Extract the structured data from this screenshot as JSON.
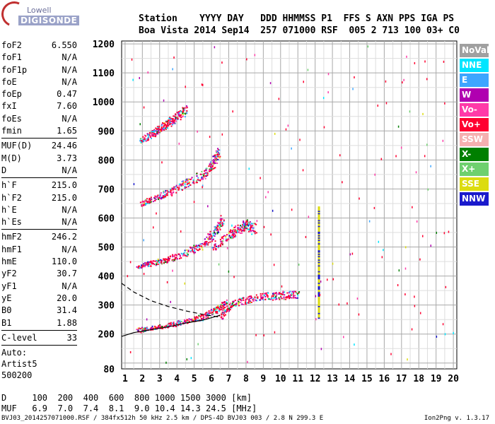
{
  "logo": {
    "line1": "Lowell",
    "line2": "DIGISONDE"
  },
  "header": {
    "row1": "Station    YYYY DAY   DDD HHMMSS P1  FFS S AXN PPS IGA PS",
    "row2": "Boa Vista 2014 Sep14  257 071000 RSF  005 2 713 100 03+ C0"
  },
  "params_group1": [
    {
      "key": "foF2",
      "value": "6.550"
    },
    {
      "key": "foF1",
      "value": "N/A"
    },
    {
      "key": "foF1p",
      "value": "N/A"
    },
    {
      "key": "foE",
      "value": "N/A"
    },
    {
      "key": "foEp",
      "value": "0.47"
    },
    {
      "key": "fxI",
      "value": "7.60"
    },
    {
      "key": "foEs",
      "value": "N/A"
    },
    {
      "key": "fmin",
      "value": "1.65"
    }
  ],
  "params_group2": [
    {
      "key": "MUF(D)",
      "value": "24.46"
    },
    {
      "key": "M(D)",
      "value": "3.73"
    },
    {
      "key": "D",
      "value": "N/A"
    }
  ],
  "params_group3": [
    {
      "key": "h`F",
      "value": "215.0"
    },
    {
      "key": "h`F2",
      "value": "215.0"
    },
    {
      "key": "h`E",
      "value": "N/A"
    },
    {
      "key": "h`Es",
      "value": "N/A"
    }
  ],
  "params_group4": [
    {
      "key": "hmF2",
      "value": "246.2"
    },
    {
      "key": "hmF1",
      "value": "N/A"
    },
    {
      "key": "hmE",
      "value": "110.0"
    },
    {
      "key": "yF2",
      "value": "30.7"
    },
    {
      "key": "yF1",
      "value": "N/A"
    },
    {
      "key": "yE",
      "value": "20.0"
    },
    {
      "key": "B0",
      "value": "31.4"
    },
    {
      "key": "B1",
      "value": "1.88"
    }
  ],
  "params_group5": [
    {
      "key": "C-level",
      "value": "33"
    }
  ],
  "auto_lines": [
    "Auto:",
    "Artist5",
    "500200"
  ],
  "legend": [
    {
      "label": "NoVal",
      "color": "#a0a0a0"
    },
    {
      "label": "NNE",
      "color": "#00e5ff"
    },
    {
      "label": "E",
      "color": "#3da5ff"
    },
    {
      "label": "W",
      "color": "#b000b0"
    },
    {
      "label": "Vo-",
      "color": "#ff3aa8"
    },
    {
      "label": "Vo+",
      "color": "#ff0030"
    },
    {
      "label": "SSW",
      "color": "#f5b0b0"
    },
    {
      "label": "X-",
      "color": "#007f00"
    },
    {
      "label": "X+",
      "color": "#6ed06e"
    },
    {
      "label": "SSE",
      "color": "#dcdc10"
    },
    {
      "label": "NNW",
      "color": "#1a1acc"
    }
  ],
  "bottom": {
    "row1": "D     100  200  400  600  800 1000 1500 3000 [km]",
    "row2": "MUF   6.9  7.0  7.4  8.1  9.0 10.4 14.3 24.5 [MHz]"
  },
  "footer": {
    "left": "BVJ03_2014257071000.RSF / 384fx512h 50 kHz 2.5 km / DPS-4D BVJ03 003 / 2.8 N 299.3 E",
    "right": "Ion2Png v. 1.3.17"
  },
  "chart_data": {
    "type": "scatter",
    "xlim": [
      0.8,
      20.2
    ],
    "ylim": [
      80,
      1210
    ],
    "x_ticks": [
      1,
      2,
      3,
      4,
      5,
      6,
      7,
      8,
      9,
      10,
      11,
      12,
      13,
      14,
      15,
      16,
      17,
      18,
      19,
      20
    ],
    "y_ticks": [
      80,
      200,
      300,
      400,
      500,
      600,
      700,
      800,
      900,
      1000,
      1100,
      1200
    ],
    "grid": true,
    "series": [
      {
        "name": "trace-1",
        "x": [
          1.7,
          2.5,
          3.5,
          4.5,
          5.5,
          6.3,
          6.8
        ],
        "y": [
          215,
          222,
          233,
          245,
          262,
          285,
          310
        ]
      },
      {
        "name": "trace-2",
        "x": [
          1.7,
          2.5,
          3.5,
          4.5,
          5.5,
          6.2,
          6.6
        ],
        "y": [
          435,
          445,
          460,
          480,
          510,
          555,
          600
        ]
      },
      {
        "name": "trace-3",
        "x": [
          1.9,
          2.5,
          3.5,
          4.5,
          5.5,
          6.1,
          6.4
        ],
        "y": [
          650,
          665,
          690,
          720,
          750,
          790,
          830
        ]
      },
      {
        "name": "trace-4",
        "x": [
          1.9,
          2.5,
          3.0,
          3.5,
          4.0,
          4.5
        ],
        "y": [
          870,
          890,
          910,
          930,
          950,
          975
        ]
      },
      {
        "name": "trace-5",
        "x": [
          6.5,
          7.0,
          8.0,
          9.0,
          10.0,
          11.0
        ],
        "y": [
          260,
          300,
          320,
          330,
          335,
          335
        ]
      },
      {
        "name": "trace-6",
        "x": [
          6.0,
          7.0,
          7.5,
          8.0,
          8.5
        ],
        "y": [
          500,
          540,
          560,
          580,
          560
        ]
      }
    ],
    "profile_dashed": {
      "x": [
        0.8,
        1.5,
        2.5,
        3.5,
        4.5,
        5.5,
        6.5
      ],
      "y": [
        375,
        345,
        315,
        295,
        280,
        268,
        258
      ]
    },
    "profile_solid": {
      "x": [
        0.8,
        1.5,
        2.5,
        3.5,
        4.5,
        5.5,
        6.5
      ],
      "y": [
        192,
        205,
        215,
        225,
        238,
        248,
        265
      ]
    },
    "vertical_band": {
      "x": 12.2,
      "y_from": 260,
      "y_to": 640
    }
  }
}
